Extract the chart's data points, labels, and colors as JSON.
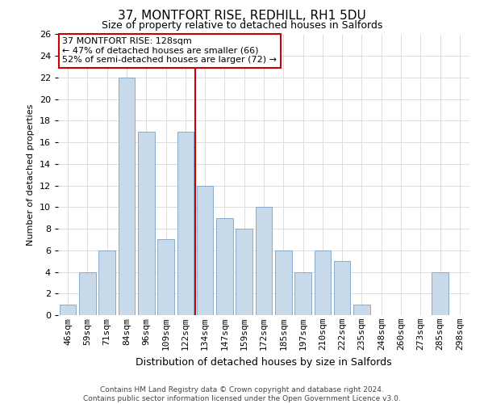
{
  "title": "37, MONTFORT RISE, REDHILL, RH1 5DU",
  "subtitle": "Size of property relative to detached houses in Salfords",
  "xlabel": "Distribution of detached houses by size in Salfords",
  "ylabel": "Number of detached properties",
  "bin_labels": [
    "46sqm",
    "59sqm",
    "71sqm",
    "84sqm",
    "96sqm",
    "109sqm",
    "122sqm",
    "134sqm",
    "147sqm",
    "159sqm",
    "172sqm",
    "185sqm",
    "197sqm",
    "210sqm",
    "222sqm",
    "235sqm",
    "248sqm",
    "260sqm",
    "273sqm",
    "285sqm",
    "298sqm"
  ],
  "bar_heights": [
    1,
    4,
    6,
    22,
    17,
    7,
    17,
    12,
    9,
    8,
    10,
    6,
    4,
    6,
    5,
    1,
    0,
    0,
    0,
    4,
    0
  ],
  "bar_color": "#c8d9ea",
  "bar_edgecolor": "#88aacc",
  "ylim": [
    0,
    26
  ],
  "yticks": [
    0,
    2,
    4,
    6,
    8,
    10,
    12,
    14,
    16,
    18,
    20,
    22,
    24,
    26
  ],
  "property_line_x": 6.5,
  "property_line_color": "#cc0000",
  "annotation_line1": "37 MONTFORT RISE: 128sqm",
  "annotation_line2": "← 47% of detached houses are smaller (66)",
  "annotation_line3": "52% of semi-detached houses are larger (72) →",
  "annotation_box_color": "#cc0000",
  "footer_line1": "Contains HM Land Registry data © Crown copyright and database right 2024.",
  "footer_line2": "Contains public sector information licensed under the Open Government Licence v3.0.",
  "background_color": "#ffffff",
  "grid_color": "#dddddd",
  "title_fontsize": 11,
  "subtitle_fontsize": 9,
  "ylabel_fontsize": 8,
  "xlabel_fontsize": 9,
  "tick_fontsize": 8,
  "annot_fontsize": 8,
  "footer_fontsize": 6.5
}
